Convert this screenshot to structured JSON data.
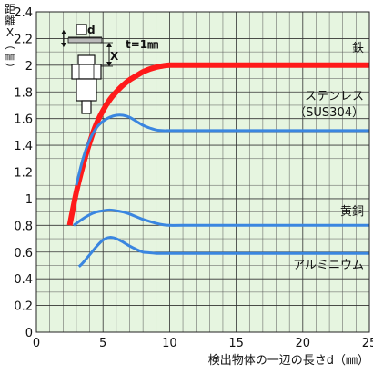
{
  "chart_data": {
    "type": "line",
    "title": "",
    "xlabel": "検出物体の一辺の長さd（㎜）",
    "ylabel": "距離X（㎜）",
    "xlim": [
      0,
      25
    ],
    "ylim": [
      0,
      2.4
    ],
    "xticks": [
      "0",
      "5",
      "10",
      "15",
      "20",
      "25"
    ],
    "yticks": [
      "0",
      "0.2",
      "0.4",
      "0.6",
      "0.8",
      "1",
      "1.2",
      "1.4",
      "1.6",
      "1.8",
      "2",
      "2.2",
      "2.4"
    ],
    "grid": true,
    "background": "#e6f5e0",
    "series": [
      {
        "name": "鉄",
        "color": "#ff1a1a",
        "x": [
          2.5,
          3,
          3.5,
          4,
          4.5,
          5,
          5.5,
          6,
          6.5,
          7,
          7.5,
          8,
          8.5,
          9,
          9.5,
          10,
          11,
          12,
          15,
          20,
          25
        ],
        "y": [
          0.8,
          1.05,
          1.25,
          1.42,
          1.56,
          1.66,
          1.74,
          1.8,
          1.85,
          1.89,
          1.92,
          1.95,
          1.97,
          1.985,
          1.995,
          2.0,
          2.0,
          2.0,
          2.0,
          2.0,
          2.0
        ]
      },
      {
        "name": "ステンレス（SUS304）",
        "color": "#3a86e0",
        "x": [
          3,
          3.5,
          4,
          4.5,
          5,
          5.5,
          6,
          6.5,
          7,
          7.5,
          8,
          8.5,
          9,
          9.5,
          10,
          11,
          12,
          15,
          20,
          25
        ],
        "y": [
          1.1,
          1.3,
          1.44,
          1.53,
          1.58,
          1.61,
          1.625,
          1.625,
          1.61,
          1.58,
          1.55,
          1.53,
          1.515,
          1.51,
          1.51,
          1.51,
          1.51,
          1.51,
          1.51,
          1.51
        ]
      },
      {
        "name": "黄銅",
        "color": "#3a86e0",
        "x": [
          2.8,
          3.5,
          4,
          4.5,
          5,
          5.5,
          6,
          6.5,
          7,
          7.5,
          8,
          8.5,
          9,
          9.5,
          10,
          11,
          15,
          20,
          25
        ],
        "y": [
          0.8,
          0.85,
          0.88,
          0.9,
          0.91,
          0.915,
          0.91,
          0.9,
          0.885,
          0.865,
          0.845,
          0.83,
          0.815,
          0.805,
          0.8,
          0.8,
          0.8,
          0.8,
          0.8
        ]
      },
      {
        "name": "アルミニウム",
        "color": "#3a86e0",
        "x": [
          3.2,
          3.5,
          4,
          4.5,
          5,
          5.5,
          6,
          6.5,
          7,
          7.5,
          8,
          8.5,
          9,
          9.5,
          10,
          11,
          15,
          20,
          25
        ],
        "y": [
          0.49,
          0.52,
          0.58,
          0.64,
          0.69,
          0.71,
          0.7,
          0.675,
          0.645,
          0.62,
          0.6,
          0.595,
          0.59,
          0.59,
          0.59,
          0.59,
          0.59,
          0.59,
          0.59
        ]
      }
    ],
    "annotations": {
      "inset_d": "d",
      "inset_x": "X",
      "inset_t": "t=1㎜"
    }
  }
}
